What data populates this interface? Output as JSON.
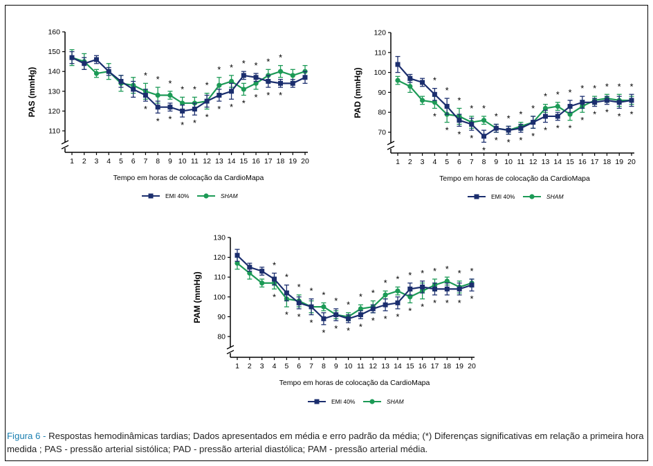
{
  "colors": {
    "emi": "#1b2e6e",
    "sham": "#1c9a56",
    "axis": "#000000"
  },
  "caption": {
    "label": "Figura 6 -",
    "text": " Respostas hemodinâmicas tardias; Dados apresentados em média e erro padrão da média; (*) Diferenças significativas em relação a primeira hora medida ; PAS - pressão arterial sistólica; PAD - pressão arterial diastólica; PAM - pressão arterial média."
  },
  "chart_data": [
    {
      "type": "line",
      "ylabel": "PAS (mmHg)",
      "xlabel": "Tempo em horas de colocação da CardioMapa",
      "x": [
        1,
        2,
        3,
        4,
        5,
        6,
        7,
        8,
        9,
        10,
        11,
        12,
        13,
        14,
        15,
        16,
        17,
        18,
        19,
        20
      ],
      "yticks": [
        110,
        120,
        130,
        140,
        150,
        160
      ],
      "ylim": [
        100,
        160
      ],
      "axis_break": true,
      "series": [
        {
          "name": "EMI 40%",
          "marker": "square",
          "values": [
            147,
            144,
            146,
            140,
            135,
            131,
            128,
            122,
            122,
            120,
            121,
            125,
            128,
            130,
            138,
            137,
            135,
            134,
            134,
            137
          ],
          "errors": [
            3,
            3,
            2,
            2,
            3,
            4,
            3,
            3,
            2,
            3,
            3,
            3,
            3,
            4,
            2,
            2,
            3,
            2,
            2,
            3
          ]
        },
        {
          "name": "SHAM",
          "marker": "circle",
          "italic": true,
          "values": [
            147,
            145,
            139,
            140,
            134,
            133,
            130,
            128,
            128,
            124,
            124,
            125,
            133,
            135,
            131,
            134,
            138,
            140,
            138,
            140
          ],
          "errors": [
            4,
            4,
            2,
            4,
            4,
            4,
            4,
            4,
            2,
            3,
            3,
            4,
            4,
            3,
            3,
            3,
            3,
            3,
            3,
            3
          ]
        }
      ],
      "sig_above": [
        7,
        8,
        9,
        10,
        11,
        12,
        13,
        14,
        15,
        16,
        17,
        18
      ],
      "sig_below": [
        7,
        8,
        9,
        10,
        11,
        12,
        13,
        14,
        15,
        16,
        17,
        18
      ],
      "legend": {
        "emi": "EMI 40%",
        "sham": "SHAM"
      }
    },
    {
      "type": "line",
      "ylabel": "PAD (mmHg)",
      "xlabel": "Tempo em horas de colocação da CardioMapa",
      "x": [
        1,
        2,
        3,
        4,
        5,
        6,
        7,
        8,
        9,
        10,
        11,
        12,
        13,
        14,
        15,
        16,
        17,
        18,
        19,
        20
      ],
      "yticks": [
        70,
        80,
        90,
        100,
        110,
        120
      ],
      "ylim": [
        60,
        120
      ],
      "axis_break": true,
      "series": [
        {
          "name": "EMI 40%",
          "marker": "square",
          "values": [
            104,
            97,
            95,
            89,
            83,
            76,
            74,
            68,
            72,
            71,
            72,
            75,
            78,
            78,
            83,
            85,
            85,
            86,
            85,
            86
          ],
          "errors": [
            4,
            2,
            2,
            3,
            4,
            3,
            3,
            3,
            2,
            2,
            2,
            3,
            3,
            2,
            3,
            3,
            2,
            2,
            3,
            3
          ]
        },
        {
          "name": "SHAM",
          "marker": "circle",
          "italic": true,
          "values": [
            96,
            93,
            86,
            85,
            79,
            78,
            75,
            76,
            72,
            71,
            73,
            75,
            82,
            83,
            79,
            83,
            86,
            87,
            86,
            86
          ],
          "errors": [
            2,
            3,
            2,
            3,
            4,
            4,
            3,
            2,
            2,
            2,
            2,
            3,
            2,
            2,
            3,
            3,
            2,
            2,
            3,
            2
          ]
        }
      ],
      "sig_above": [
        4,
        5,
        6,
        7,
        8,
        9,
        10,
        11,
        12,
        13,
        14,
        15,
        16,
        17,
        18,
        19,
        20
      ],
      "sig_below": [
        4,
        5,
        6,
        7,
        8,
        9,
        10,
        11,
        12,
        13,
        14,
        15,
        16,
        17,
        18,
        19,
        20
      ],
      "legend": {
        "emi": "EMI 40%",
        "sham": "SHAM"
      }
    },
    {
      "type": "line",
      "ylabel": "PAM (mmHg)",
      "xlabel": "Tempo em horas de colocação da CardioMapa",
      "x": [
        1,
        2,
        3,
        4,
        5,
        6,
        7,
        8,
        9,
        10,
        11,
        12,
        13,
        14,
        15,
        16,
        17,
        18,
        19,
        20
      ],
      "yticks": [
        80,
        90,
        100,
        110,
        120,
        130
      ],
      "ylim": [
        70,
        130
      ],
      "axis_break": true,
      "series": [
        {
          "name": "EMI 40%",
          "marker": "square",
          "values": [
            121,
            115,
            113,
            109,
            102,
            97,
            95,
            89,
            91,
            89,
            91,
            94,
            96,
            97,
            104,
            105,
            104,
            104,
            104,
            106
          ],
          "errors": [
            3,
            2,
            2,
            3,
            4,
            3,
            4,
            3,
            3,
            2,
            2,
            2,
            3,
            3,
            3,
            3,
            3,
            3,
            3,
            3
          ]
        },
        {
          "name": "SHAM",
          "marker": "circle",
          "italic": true,
          "values": [
            117,
            112,
            107,
            107,
            99,
            98,
            95,
            95,
            91,
            90,
            94,
            95,
            101,
            103,
            100,
            103,
            106,
            108,
            105,
            107
          ],
          "errors": [
            3,
            3,
            2,
            3,
            4,
            3,
            3,
            2,
            2,
            2,
            2,
            3,
            2,
            2,
            3,
            4,
            3,
            2,
            3,
            2
          ]
        }
      ],
      "sig_above": [
        4,
        5,
        6,
        7,
        8,
        9,
        10,
        11,
        12,
        13,
        14,
        15,
        16,
        17,
        18,
        19,
        20
      ],
      "sig_below": [
        4,
        5,
        6,
        7,
        8,
        9,
        10,
        11,
        12,
        13,
        14,
        15,
        16,
        17,
        18,
        19,
        20
      ],
      "legend": {
        "emi": "EMI 40%",
        "sham": "SHAM"
      }
    }
  ]
}
